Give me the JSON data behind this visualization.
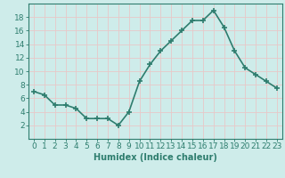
{
  "x": [
    0,
    1,
    2,
    3,
    4,
    5,
    6,
    7,
    8,
    9,
    10,
    11,
    12,
    13,
    14,
    15,
    16,
    17,
    18,
    19,
    20,
    21,
    22,
    23
  ],
  "y": [
    7.0,
    6.5,
    5.0,
    5.0,
    4.5,
    3.0,
    3.0,
    3.0,
    2.0,
    4.0,
    8.5,
    11.0,
    13.0,
    14.5,
    16.0,
    17.5,
    17.5,
    19.0,
    16.5,
    13.0,
    10.5,
    9.5,
    8.5,
    7.5
  ],
  "xlabel": "Humidex (Indice chaleur)",
  "ylim": [
    0,
    20
  ],
  "xlim": [
    -0.5,
    23.5
  ],
  "yticks": [
    2,
    4,
    6,
    8,
    10,
    12,
    14,
    16,
    18
  ],
  "xticks": [
    0,
    1,
    2,
    3,
    4,
    5,
    6,
    7,
    8,
    9,
    10,
    11,
    12,
    13,
    14,
    15,
    16,
    17,
    18,
    19,
    20,
    21,
    22,
    23
  ],
  "line_color": "#2e7d6e",
  "marker": "+",
  "bg_color": "#ceecea",
  "grid_color": "#e8c8c8",
  "text_color": "#2e7d6e",
  "xlabel_fontsize": 7,
  "tick_fontsize": 6.5,
  "linewidth": 1.2
}
